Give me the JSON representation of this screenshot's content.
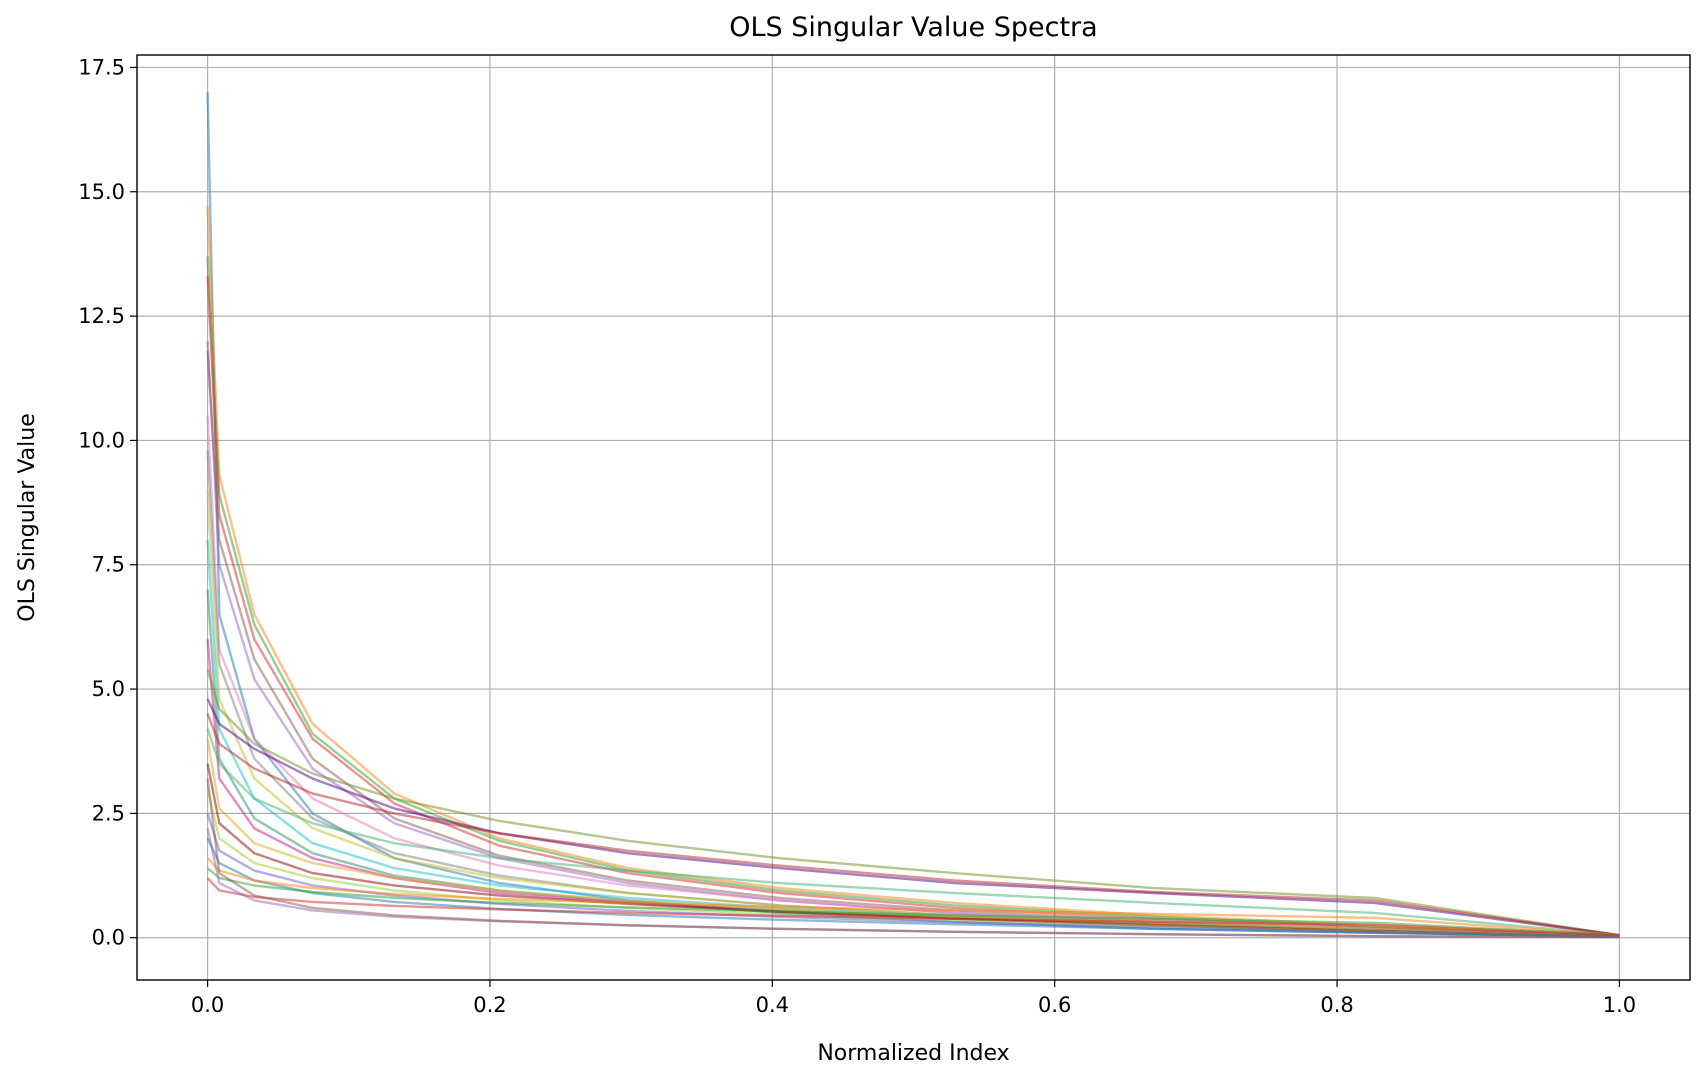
{
  "chart_data": {
    "type": "line",
    "title": "OLS Singular Value Spectra",
    "xlabel": "Normalized Index",
    "ylabel": "OLS Singular Value",
    "xlim": [
      -0.05,
      1.05
    ],
    "ylim": [
      -0.85,
      17.75
    ],
    "xticks": [
      0.0,
      0.2,
      0.4,
      0.6,
      0.8,
      1.0
    ],
    "xtick_labels": [
      "0.0",
      "0.2",
      "0.4",
      "0.6",
      "0.8",
      "1.0"
    ],
    "yticks": [
      0.0,
      2.5,
      5.0,
      7.5,
      10.0,
      12.5,
      15.0,
      17.5
    ],
    "ytick_labels": [
      "0.0",
      "2.5",
      "5.0",
      "7.5",
      "10.0",
      "12.5",
      "15.0",
      "17.5"
    ],
    "grid": true,
    "legend": "none",
    "line_alpha": 0.5,
    "colors": [
      "#1f77b4",
      "#ff7f0e",
      "#2ca02c",
      "#d62728",
      "#9467bd",
      "#8c564b",
      "#e377c2",
      "#7f7f7f",
      "#bcbd22",
      "#17becf",
      "#2e8b57",
      "#c71585",
      "#6b8e23",
      "#4b0082",
      "#b22222",
      "#3cb371",
      "#daa520",
      "#8b0000",
      "#9acd32",
      "#6a5acd"
    ],
    "series": [
      {
        "values": [
          17.0,
          6.5,
          4.0,
          2.5,
          1.6,
          1.1,
          0.75,
          0.5,
          0.32,
          0.18,
          0.1,
          0.02
        ]
      },
      {
        "values": [
          14.7,
          9.3,
          6.5,
          4.3,
          2.9,
          2.0,
          1.4,
          1.0,
          0.7,
          0.45,
          0.25,
          0.03
        ]
      },
      {
        "values": [
          13.7,
          8.9,
          6.3,
          4.1,
          2.8,
          1.95,
          1.35,
          0.95,
          0.65,
          0.42,
          0.22,
          0.03
        ]
      },
      {
        "values": [
          13.3,
          8.5,
          6.0,
          4.0,
          2.7,
          1.85,
          1.3,
          0.9,
          0.6,
          0.38,
          0.2,
          0.03
        ]
      },
      {
        "values": [
          12.0,
          7.5,
          5.2,
          3.4,
          2.3,
          1.6,
          1.1,
          0.75,
          0.5,
          0.3,
          0.15,
          0.02
        ]
      },
      {
        "values": [
          11.8,
          8.0,
          5.6,
          3.6,
          2.4,
          1.65,
          1.15,
          0.8,
          0.55,
          0.33,
          0.16,
          0.02
        ]
      },
      {
        "values": [
          10.5,
          5.8,
          4.0,
          2.8,
          2.0,
          1.45,
          1.05,
          0.75,
          0.5,
          0.3,
          0.15,
          0.02
        ]
      },
      {
        "values": [
          9.8,
          5.5,
          3.6,
          2.4,
          1.7,
          1.25,
          0.9,
          0.65,
          0.45,
          0.28,
          0.14,
          0.02
        ]
      },
      {
        "values": [
          9.0,
          4.8,
          3.2,
          2.2,
          1.6,
          1.2,
          0.9,
          0.65,
          0.45,
          0.3,
          0.16,
          0.02
        ]
      },
      {
        "values": [
          8.0,
          4.2,
          2.8,
          1.9,
          1.4,
          1.05,
          0.8,
          0.6,
          0.42,
          0.28,
          0.15,
          0.02
        ]
      },
      {
        "values": [
          7.0,
          3.6,
          2.4,
          1.7,
          1.25,
          0.95,
          0.72,
          0.55,
          0.4,
          0.27,
          0.14,
          0.02
        ]
      },
      {
        "values": [
          6.0,
          3.2,
          2.2,
          1.6,
          1.2,
          0.9,
          0.7,
          0.53,
          0.38,
          0.26,
          0.14,
          0.02
        ]
      },
      {
        "values": [
          5.4,
          4.6,
          3.9,
          3.3,
          2.8,
          2.35,
          1.95,
          1.6,
          1.3,
          1.0,
          0.8,
          0.05
        ]
      },
      {
        "values": [
          4.8,
          4.3,
          3.8,
          3.2,
          2.6,
          2.1,
          1.7,
          1.4,
          1.1,
          0.9,
          0.7,
          0.05
        ]
      },
      {
        "values": [
          4.5,
          3.9,
          3.4,
          2.9,
          2.5,
          2.1,
          1.75,
          1.45,
          1.15,
          0.92,
          0.75,
          0.05
        ]
      },
      {
        "values": [
          4.2,
          3.5,
          2.8,
          2.3,
          1.9,
          1.6,
          1.35,
          1.1,
          0.9,
          0.7,
          0.5,
          0.05
        ]
      },
      {
        "values": [
          4.0,
          2.6,
          1.9,
          1.5,
          1.2,
          0.95,
          0.75,
          0.58,
          0.42,
          0.28,
          0.15,
          0.02
        ]
      },
      {
        "values": [
          3.5,
          2.3,
          1.7,
          1.3,
          1.05,
          0.85,
          0.68,
          0.52,
          0.38,
          0.25,
          0.13,
          0.02
        ]
      },
      {
        "values": [
          3.0,
          2.0,
          1.5,
          1.2,
          0.95,
          0.75,
          0.6,
          0.47,
          0.35,
          0.24,
          0.12,
          0.02
        ]
      },
      {
        "values": [
          2.5,
          1.75,
          1.35,
          1.05,
          0.85,
          0.68,
          0.54,
          0.42,
          0.31,
          0.21,
          0.11,
          0.02
        ]
      },
      {
        "values": [
          2.0,
          1.5,
          1.15,
          0.9,
          0.72,
          0.58,
          0.46,
          0.36,
          0.27,
          0.18,
          0.1,
          0.02
        ]
      },
      {
        "values": [
          1.6,
          1.35,
          1.15,
          1.0,
          0.88,
          0.78,
          0.7,
          0.62,
          0.55,
          0.48,
          0.4,
          0.05
        ]
      },
      {
        "values": [
          1.4,
          1.2,
          1.05,
          0.92,
          0.8,
          0.7,
          0.61,
          0.53,
          0.45,
          0.38,
          0.3,
          0.05
        ]
      },
      {
        "values": [
          1.2,
          0.95,
          0.82,
          0.72,
          0.64,
          0.57,
          0.5,
          0.44,
          0.38,
          0.32,
          0.26,
          0.05
        ]
      },
      {
        "values": [
          2.2,
          1.1,
          0.75,
          0.55,
          0.42,
          0.33,
          0.25,
          0.18,
          0.12,
          0.07,
          0.03,
          0.01
        ]
      },
      {
        "values": [
          3.2,
          1.3,
          0.85,
          0.6,
          0.45,
          0.34,
          0.25,
          0.18,
          0.12,
          0.07,
          0.03,
          0.01
        ]
      }
    ]
  }
}
